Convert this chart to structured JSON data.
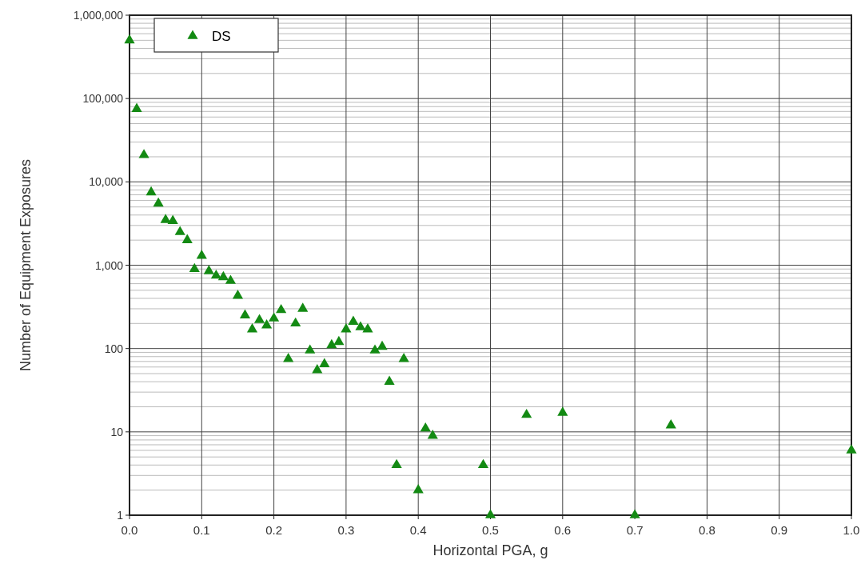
{
  "chart_data": {
    "type": "scatter",
    "xlabel": "Horizontal PGA, g",
    "ylabel": "Number of Equipment Exposures",
    "log": "y",
    "grid": true,
    "legend": "top left",
    "marker": "triangle",
    "xlim": [
      0,
      1
    ],
    "xticks": [
      {
        "value": 0,
        "label": "0.0"
      },
      0.1,
      0.2,
      0.3,
      0.4,
      0.5,
      0.6,
      0.7,
      0.8,
      0.9,
      {
        "value": 1,
        "label": "1.0"
      }
    ],
    "ylim": [
      1,
      1000000
    ],
    "yticks": [
      1,
      10,
      100,
      {
        "value": 1000,
        "label": "1,000"
      },
      {
        "value": 10000,
        "label": "10,000"
      },
      {
        "value": 100000,
        "label": "100,000"
      },
      {
        "value": 1000000,
        "label": "1,000,000"
      }
    ],
    "series": [
      {
        "name": "DS",
        "color": "#138a13",
        "x": [
          0,
          0.01,
          0.02,
          0.03,
          0.04,
          0.05,
          0.06,
          0.07,
          0.08,
          0.09,
          0.1,
          0.11,
          0.12,
          0.13,
          0.14,
          0.15,
          0.16,
          0.17,
          0.18,
          0.19,
          0.2,
          0.21,
          0.22,
          0.23,
          0.24,
          0.25,
          0.26,
          0.27,
          0.28,
          0.29,
          0.3,
          0.31,
          0.32,
          0.33,
          0.34,
          0.35,
          0.36,
          0.37,
          0.38,
          0.4,
          0.41,
          0.42,
          0.49,
          0.5,
          0.55,
          0.6,
          0.7,
          0.75,
          1
        ],
        "values": [
          500000,
          75000,
          21000,
          7500,
          5500,
          3500,
          3400,
          2500,
          2000,
          900,
          1300,
          850,
          750,
          720,
          650,
          430,
          250,
          170,
          220,
          190,
          230,
          290,
          75,
          200,
          300,
          95,
          55,
          65,
          110,
          120,
          170,
          210,
          180,
          170,
          95,
          105,
          40,
          4,
          75,
          2,
          11,
          9,
          4,
          1,
          16,
          17,
          1,
          12,
          6
        ]
      }
    ]
  }
}
